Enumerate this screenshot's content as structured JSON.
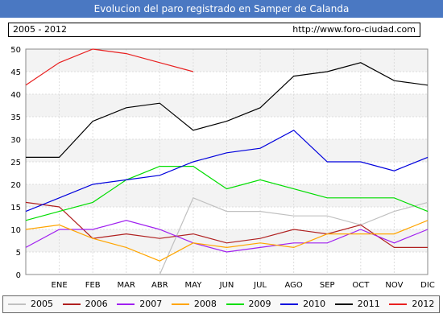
{
  "header": {
    "title": "Evolucion del paro registrado en Samper de Calanda",
    "period": "2005 - 2012",
    "url": "http://www.foro-ciudad.com"
  },
  "chart_data": {
    "type": "line",
    "categories": [
      "",
      "ENE",
      "FEB",
      "MAR",
      "ABR",
      "MAY",
      "JUN",
      "JUL",
      "AGO",
      "SEP",
      "OCT",
      "NOV",
      "DIC"
    ],
    "ylim": [
      0,
      50
    ],
    "yticks": [
      0,
      5,
      10,
      15,
      20,
      25,
      30,
      35,
      40,
      45,
      50
    ],
    "grid": true,
    "legend_placement": "bottom",
    "series": [
      {
        "name": "2005",
        "color": "#c0c0c0",
        "values": [
          null,
          null,
          null,
          null,
          0,
          17,
          14,
          14,
          13,
          13,
          11,
          14,
          16
        ]
      },
      {
        "name": "2006",
        "color": "#b02020",
        "values": [
          16,
          15,
          8,
          9,
          8,
          9,
          7,
          8,
          10,
          9,
          11,
          6,
          6
        ]
      },
      {
        "name": "2007",
        "color": "#a020f0",
        "values": [
          6,
          10,
          10,
          12,
          10,
          7,
          5,
          6,
          7,
          7,
          10,
          7,
          10
        ]
      },
      {
        "name": "2008",
        "color": "#ffa500",
        "values": [
          10,
          11,
          8,
          6,
          3,
          7,
          6,
          7,
          6,
          9,
          9,
          9,
          12
        ]
      },
      {
        "name": "2009",
        "color": "#00dd00",
        "values": [
          12,
          14,
          16,
          21,
          24,
          24,
          19,
          21,
          19,
          17,
          17,
          17,
          14
        ]
      },
      {
        "name": "2010",
        "color": "#0000dd",
        "values": [
          14,
          17,
          20,
          21,
          22,
          25,
          27,
          28,
          32,
          25,
          25,
          23,
          26
        ]
      },
      {
        "name": "2011",
        "color": "#000000",
        "values": [
          26,
          26,
          34,
          37,
          38,
          32,
          34,
          37,
          44,
          45,
          47,
          43,
          42
        ]
      },
      {
        "name": "2012",
        "color": "#e82020",
        "values": [
          42,
          47,
          50,
          49,
          47,
          45,
          null,
          null,
          null,
          null,
          null,
          null,
          null
        ]
      }
    ]
  }
}
